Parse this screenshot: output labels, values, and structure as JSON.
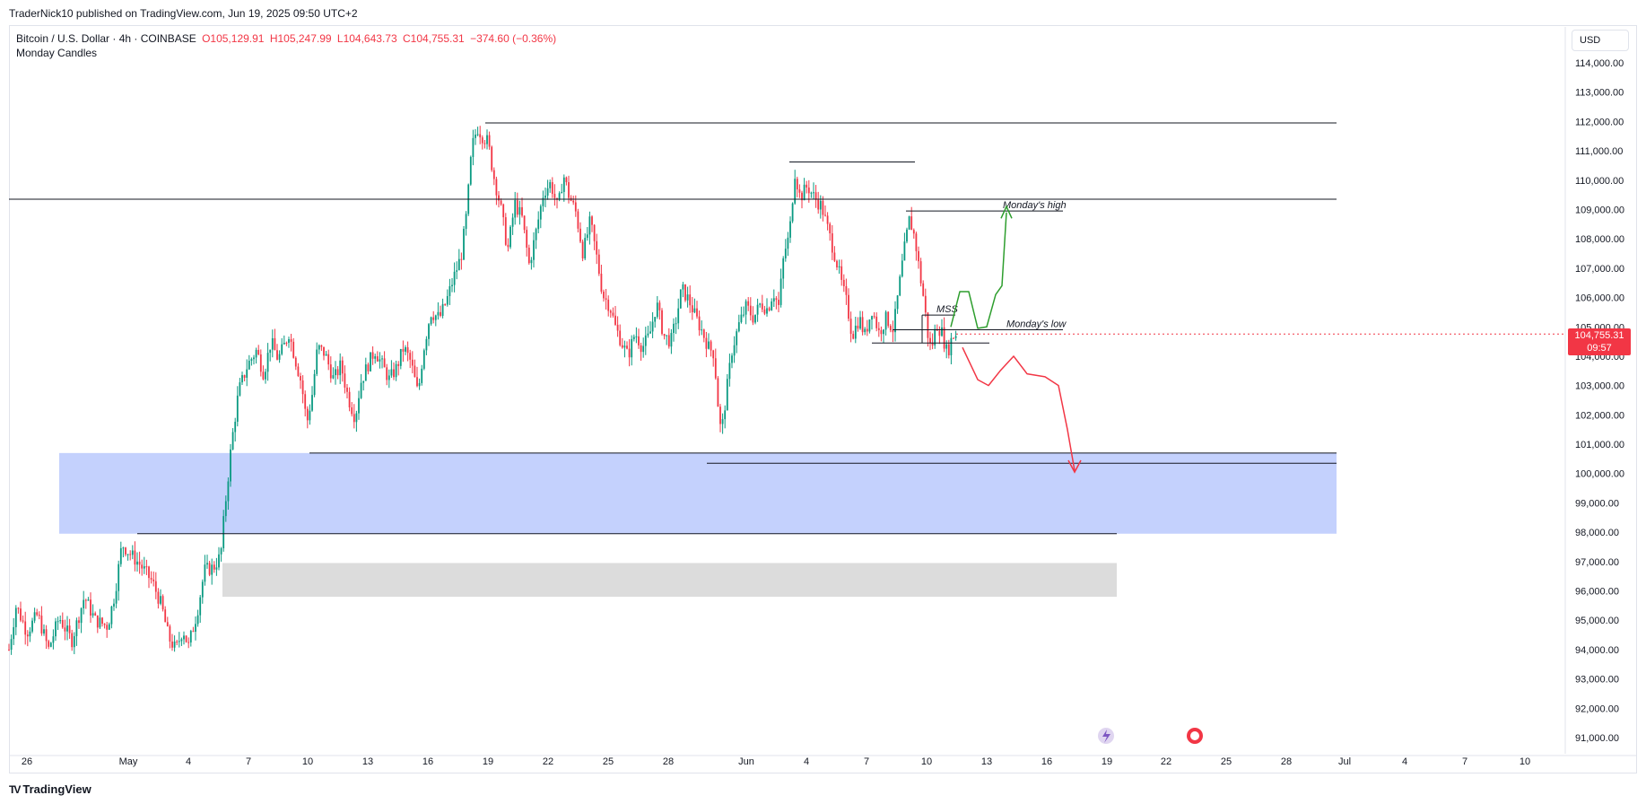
{
  "header": {
    "published": "TraderNick10 published on TradingView.com, Jun 19, 2025 09:50 UTC+2"
  },
  "legend": {
    "symbol": "Bitcoin / U.S. Dollar · 4h · COINBASE",
    "open": "O105,129.91",
    "high": "H105,247.99",
    "low": "L104,643.73",
    "close": "C104,755.31",
    "change": "−374.60 (−0.36%)",
    "indicator": "Monday Candles"
  },
  "currency_button": "USD",
  "last_price": {
    "value": "104,755.31",
    "countdown": "09:57"
  },
  "footer": {
    "logo": "TradingView",
    "logo_mark": "TV"
  },
  "colors": {
    "up": "#089981",
    "down": "#f23645",
    "zone_blue": "#c4d1fd",
    "zone_grey": "#dcdcdc",
    "bull_path": "#2e9e2e",
    "bear_path": "#f23645"
  },
  "chart_data": {
    "type": "candlestick",
    "title": "Bitcoin / U.S. Dollar",
    "interval": "4h",
    "exchange": "COINBASE",
    "ylim": [
      90500,
      115000
    ],
    "yticks": [
      "114,000.00",
      "113,000.00",
      "112,000.00",
      "111,000.00",
      "110,000.00",
      "109,000.00",
      "108,000.00",
      "107,000.00",
      "106,000.00",
      "105,000.00",
      "104,000.00",
      "103,000.00",
      "102,000.00",
      "101,000.00",
      "100,000.00",
      "99,000.00",
      "98,000.00",
      "97,000.00",
      "96,000.00",
      "95,000.00",
      "94,000.00",
      "93,000.00",
      "92,000.00",
      "91,000.00"
    ],
    "xticks": [
      "26",
      "May",
      "4",
      "7",
      "10",
      "13",
      "16",
      "19",
      "22",
      "25",
      "28",
      "Jun",
      "4",
      "7",
      "10",
      "13",
      "16",
      "19",
      "22",
      "25",
      "28",
      "Jul",
      "4",
      "7",
      "10"
    ],
    "price_path": [
      [
        0,
        94000
      ],
      [
        8,
        95500
      ],
      [
        20,
        94600
      ],
      [
        32,
        95200
      ],
      [
        44,
        94000
      ],
      [
        56,
        95100
      ],
      [
        70,
        94300
      ],
      [
        84,
        95800
      ],
      [
        96,
        95000
      ],
      [
        110,
        94800
      ],
      [
        118,
        95900
      ],
      [
        126,
        97600
      ],
      [
        134,
        97300
      ],
      [
        146,
        96900
      ],
      [
        160,
        96300
      ],
      [
        170,
        95500
      ],
      [
        178,
        94400
      ],
      [
        186,
        94000
      ],
      [
        194,
        94700
      ],
      [
        200,
        94100
      ],
      [
        210,
        95300
      ],
      [
        218,
        96700
      ],
      [
        228,
        96800
      ],
      [
        236,
        97200
      ],
      [
        240,
        98600
      ],
      [
        248,
        101000
      ],
      [
        256,
        102800
      ],
      [
        266,
        103700
      ],
      [
        276,
        104200
      ],
      [
        284,
        103400
      ],
      [
        292,
        104500
      ],
      [
        300,
        103900
      ],
      [
        306,
        104300
      ],
      [
        312,
        104800
      ],
      [
        320,
        103800
      ],
      [
        326,
        103100
      ],
      [
        332,
        101700
      ],
      [
        338,
        102700
      ],
      [
        344,
        104300
      ],
      [
        352,
        104100
      ],
      [
        362,
        103200
      ],
      [
        370,
        103700
      ],
      [
        378,
        102600
      ],
      [
        386,
        101900
      ],
      [
        392,
        103100
      ],
      [
        400,
        103700
      ],
      [
        408,
        104200
      ],
      [
        416,
        103700
      ],
      [
        424,
        103200
      ],
      [
        432,
        103600
      ],
      [
        440,
        104300
      ],
      [
        448,
        103800
      ],
      [
        456,
        102700
      ],
      [
        462,
        104200
      ],
      [
        470,
        105500
      ],
      [
        480,
        105300
      ],
      [
        488,
        105900
      ],
      [
        496,
        106700
      ],
      [
        504,
        107400
      ],
      [
        510,
        108800
      ],
      [
        516,
        111100
      ],
      [
        522,
        111800
      ],
      [
        528,
        111500
      ],
      [
        534,
        111300
      ],
      [
        540,
        110200
      ],
      [
        548,
        109100
      ],
      [
        556,
        107600
      ],
      [
        564,
        109200
      ],
      [
        572,
        108700
      ],
      [
        580,
        107100
      ],
      [
        588,
        108300
      ],
      [
        596,
        109600
      ],
      [
        604,
        109900
      ],
      [
        612,
        109000
      ],
      [
        618,
        110200
      ],
      [
        624,
        109500
      ],
      [
        632,
        108900
      ],
      [
        640,
        107500
      ],
      [
        648,
        108600
      ],
      [
        654,
        107600
      ],
      [
        662,
        106100
      ],
      [
        670,
        105700
      ],
      [
        676,
        105000
      ],
      [
        684,
        104400
      ],
      [
        690,
        104000
      ],
      [
        698,
        104800
      ],
      [
        706,
        104300
      ],
      [
        714,
        104700
      ],
      [
        722,
        105800
      ],
      [
        730,
        104700
      ],
      [
        738,
        104500
      ],
      [
        744,
        105300
      ],
      [
        750,
        106300
      ],
      [
        758,
        105900
      ],
      [
        766,
        105300
      ],
      [
        772,
        104900
      ],
      [
        780,
        104300
      ],
      [
        786,
        104100
      ],
      [
        790,
        102500
      ],
      [
        794,
        101300
      ],
      [
        800,
        102800
      ],
      [
        806,
        104200
      ],
      [
        814,
        105100
      ],
      [
        822,
        105700
      ],
      [
        830,
        105300
      ],
      [
        838,
        105800
      ],
      [
        846,
        105600
      ],
      [
        852,
        106200
      ],
      [
        858,
        105700
      ],
      [
        864,
        107500
      ],
      [
        870,
        108100
      ],
      [
        876,
        110300
      ],
      [
        882,
        109400
      ],
      [
        890,
        109800
      ],
      [
        898,
        109400
      ],
      [
        906,
        109100
      ],
      [
        914,
        108200
      ],
      [
        922,
        107300
      ],
      [
        928,
        106500
      ],
      [
        934,
        105800
      ],
      [
        940,
        104700
      ],
      [
        948,
        105300
      ],
      [
        954,
        104700
      ],
      [
        962,
        105600
      ],
      [
        970,
        104800
      ],
      [
        978,
        105300
      ],
      [
        986,
        104900
      ],
      [
        992,
        106300
      ],
      [
        998,
        107600
      ],
      [
        1004,
        108700
      ],
      [
        1010,
        108000
      ],
      [
        1016,
        106700
      ],
      [
        1020,
        105900
      ],
      [
        1024,
        104800
      ],
      [
        1028,
        104200
      ],
      [
        1034,
        105100
      ],
      [
        1040,
        104800
      ],
      [
        1046,
        104100
      ],
      [
        1052,
        104700
      ],
      [
        1056,
        104755
      ]
    ],
    "levels": [
      {
        "name": "ath-high",
        "price": 111950,
        "x_from": 531,
        "x_to": 1480
      },
      {
        "name": "horizontal-line",
        "price": 109350,
        "x_from": 0,
        "x_to": 1480
      },
      {
        "name": "swing-high-line",
        "price": 110620,
        "x_from": 870,
        "x_to": 1010
      },
      {
        "name": "mondays-high-line",
        "price": 108950,
        "x_from": 1000,
        "x_to": 1175
      },
      {
        "name": "mss-line",
        "price": 105400,
        "x_from": 1018,
        "x_to": 1055
      },
      {
        "name": "mondays-low-line",
        "price": 104900,
        "x_from": 985,
        "x_to": 1175
      },
      {
        "name": "low-line",
        "price": 104450,
        "x_from": 962,
        "x_to": 1093
      },
      {
        "name": "may-low-line",
        "price": 100700,
        "x_from": 335,
        "x_to": 1480
      },
      {
        "name": "june-low-line",
        "price": 100350,
        "x_from": 778,
        "x_to": 1480
      },
      {
        "name": "zone-top-line",
        "price": 97950,
        "x_from": 143,
        "x_to": 1235
      }
    ],
    "zones": [
      {
        "name": "demand-zone-blue",
        "from": 97950,
        "to": 100700,
        "x_from": 56,
        "x_to": 1480,
        "color": "#c4d1fd"
      },
      {
        "name": "gap-zone-grey",
        "from": 95800,
        "to": 96950,
        "x_from": 238,
        "x_to": 1235,
        "color": "#dcdcdc"
      }
    ],
    "annotations": [
      {
        "text": "Monday's high",
        "price": 109050,
        "x": 1108
      },
      {
        "text": "Monday's low",
        "price": 105000,
        "x": 1112
      },
      {
        "text": "MSS",
        "price": 105500,
        "x": 1034
      }
    ],
    "grid": false,
    "legend_position": "top-left"
  }
}
